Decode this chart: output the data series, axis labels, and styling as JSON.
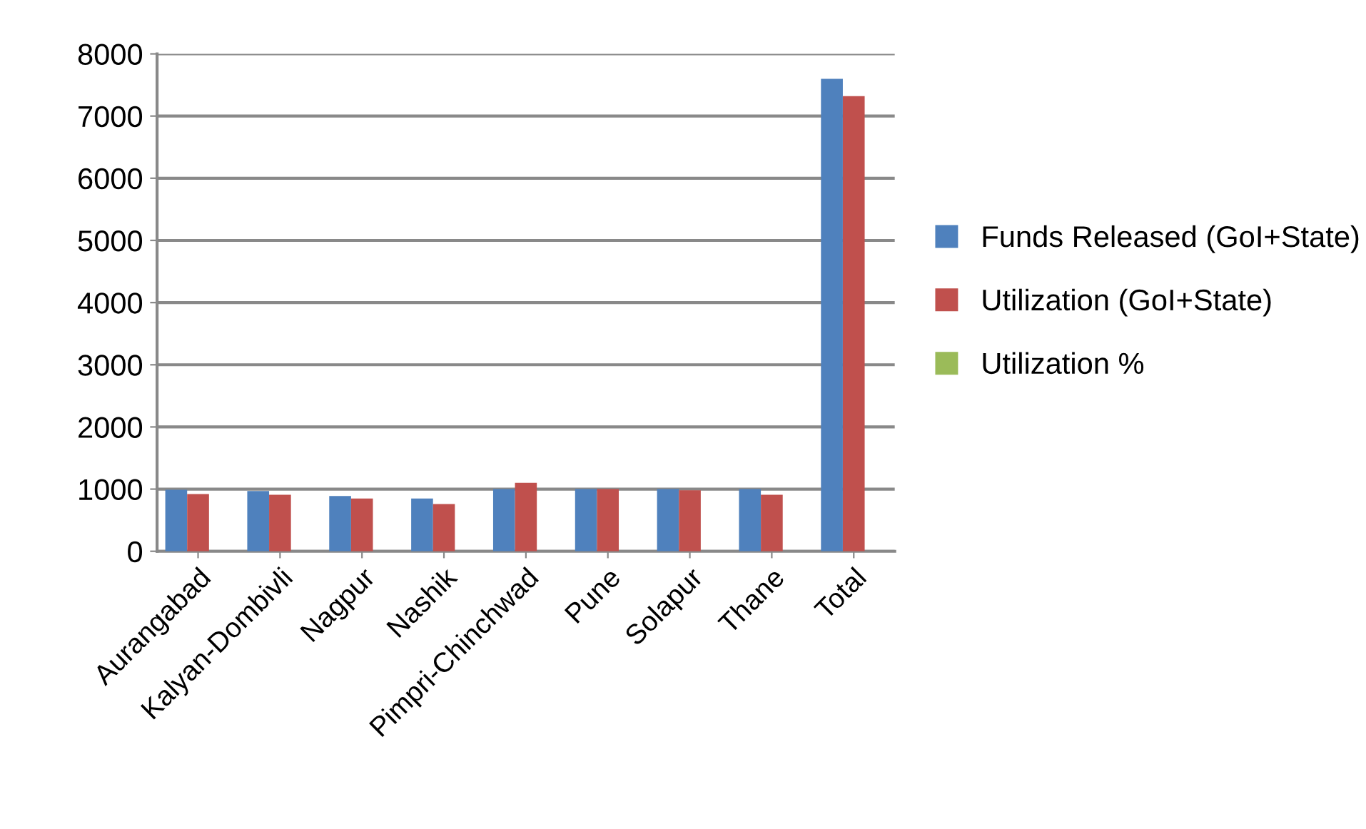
{
  "chart_data": {
    "type": "bar",
    "categories": [
      "Aurangabad",
      "Kalyan-Dombivli",
      "Nagpur",
      "Nashik",
      "Pimpri-Chinchwad",
      "Pune",
      "Solapur",
      "Thane",
      "Total"
    ],
    "series": [
      {
        "name": "Funds Released (GoI+State)",
        "color": "#4f81bd",
        "values": [
          990,
          970,
          890,
          850,
          1000,
          1000,
          1000,
          1000,
          7600
        ]
      },
      {
        "name": "Utilization (GoI+State)",
        "color": "#c0504d",
        "values": [
          920,
          910,
          850,
          760,
          1100,
          1000,
          980,
          910,
          7320
        ]
      },
      {
        "name": "Utilization %",
        "color": "#9bbb59",
        "values": [
          0,
          0,
          0,
          0,
          0,
          0,
          0,
          0,
          0
        ]
      }
    ],
    "ylim": [
      0,
      8000
    ],
    "yticks": [
      0,
      1000,
      2000,
      3000,
      4000,
      5000,
      6000,
      7000,
      8000
    ],
    "grid": "y",
    "legend": "right"
  }
}
